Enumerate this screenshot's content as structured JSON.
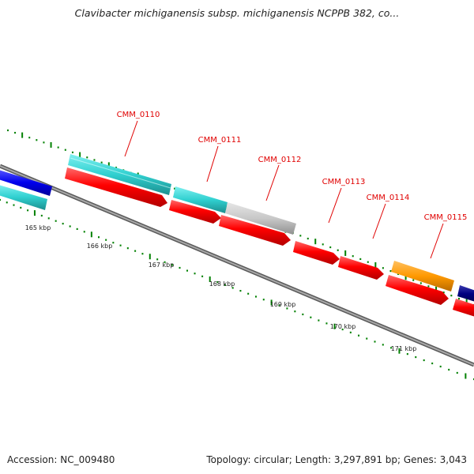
{
  "title": "Clavibacter michiganensis subsp. michiganensis NCPPB 382, co...",
  "footer": {
    "accession": "Accession: NC_009480",
    "summary": "Topology: circular; Length: 3,297,891 bp; Genes: 3,043"
  },
  "gene_labels": [
    "CMM_0110",
    "CMM_0111",
    "CMM_0112",
    "CMM_0113",
    "CMM_0114",
    "CMM_0115"
  ],
  "tick_labels": [
    "165 kbp",
    "166 kbp",
    "167 kbp",
    "168 kbp",
    "169 kbp",
    "170 kbp",
    "171 kbp"
  ],
  "colors": {
    "cds": "#ff0000",
    "cyan_feature": "#33cccc",
    "grey_feature": "#c8c8c8",
    "orange_feature": "#ff9900",
    "blue_feature": "#0000ee",
    "navy_feature": "#000080",
    "backbone": "#808080",
    "tick_mark": "#008000",
    "label_text": "#e00000"
  }
}
